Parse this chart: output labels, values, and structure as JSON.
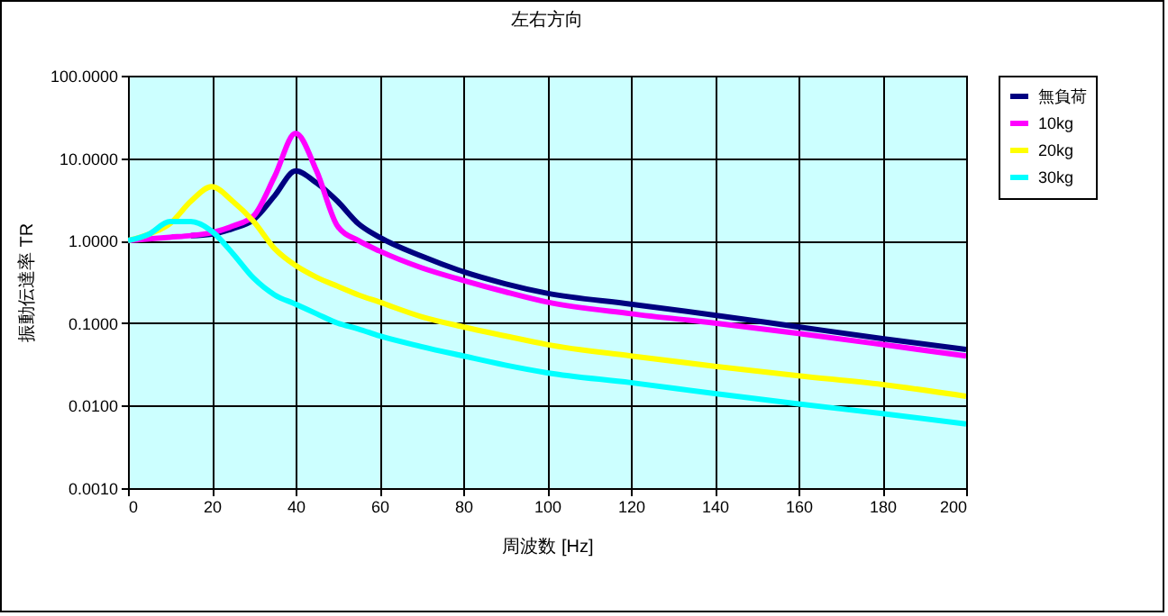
{
  "chart_data": {
    "type": "line",
    "title": "左右方向",
    "xlabel": "周波数 [Hz]",
    "ylabel": "振動伝達率 TR",
    "log": "y",
    "grid": true,
    "legend": "right",
    "marker": "none",
    "line_style": "solid",
    "xlim": [
      0,
      200
    ],
    "xticks": [
      0,
      20,
      40,
      60,
      80,
      100,
      120,
      140,
      160,
      180,
      200
    ],
    "ylim": [
      0.001,
      100
    ],
    "yticks": [
      {
        "value": 0.001,
        "label": "0.0010"
      },
      {
        "value": 0.01,
        "label": "0.0100"
      },
      {
        "value": 0.1,
        "label": "0.1000"
      },
      {
        "value": 1,
        "label": "1.0000"
      },
      {
        "value": 10,
        "label": "10.0000"
      },
      {
        "value": 100,
        "label": "100.0000"
      }
    ],
    "x": [
      0,
      5,
      10,
      15,
      20,
      25,
      30,
      35,
      40,
      45,
      50,
      55,
      60,
      70,
      80,
      90,
      100,
      120,
      140,
      160,
      180,
      200
    ],
    "series": [
      {
        "name": "無負荷",
        "color": "#000080",
        "values": [
          null,
          null,
          null,
          1.15,
          1.2,
          1.4,
          1.8,
          3.5,
          7,
          5,
          3,
          1.6,
          1.1,
          0.65,
          0.42,
          0.3,
          0.23,
          0.17,
          0.125,
          0.09,
          0.065,
          0.048
        ]
      },
      {
        "name": "10kg",
        "color": "#ff00ff",
        "values": [
          1,
          1.05,
          1.1,
          1.15,
          1.25,
          1.5,
          2,
          6,
          20,
          7,
          1.5,
          1,
          0.75,
          0.47,
          0.33,
          0.24,
          0.18,
          0.13,
          0.1,
          0.075,
          0.055,
          0.04
        ]
      },
      {
        "name": "20kg",
        "color": "#ffff00",
        "values": [
          1,
          1.2,
          1.6,
          3,
          4.5,
          3,
          1.7,
          0.8,
          0.5,
          0.36,
          0.28,
          0.22,
          0.18,
          0.12,
          0.09,
          0.07,
          0.055,
          0.04,
          0.03,
          0.023,
          0.018,
          0.013
        ]
      },
      {
        "name": "30kg",
        "color": "#00ffff",
        "values": [
          1,
          1.2,
          1.7,
          1.7,
          1.3,
          0.7,
          0.35,
          0.22,
          0.17,
          0.13,
          0.1,
          0.085,
          0.07,
          0.052,
          0.04,
          0.031,
          0.025,
          0.019,
          0.014,
          0.0105,
          0.008,
          0.006
        ]
      }
    ]
  }
}
